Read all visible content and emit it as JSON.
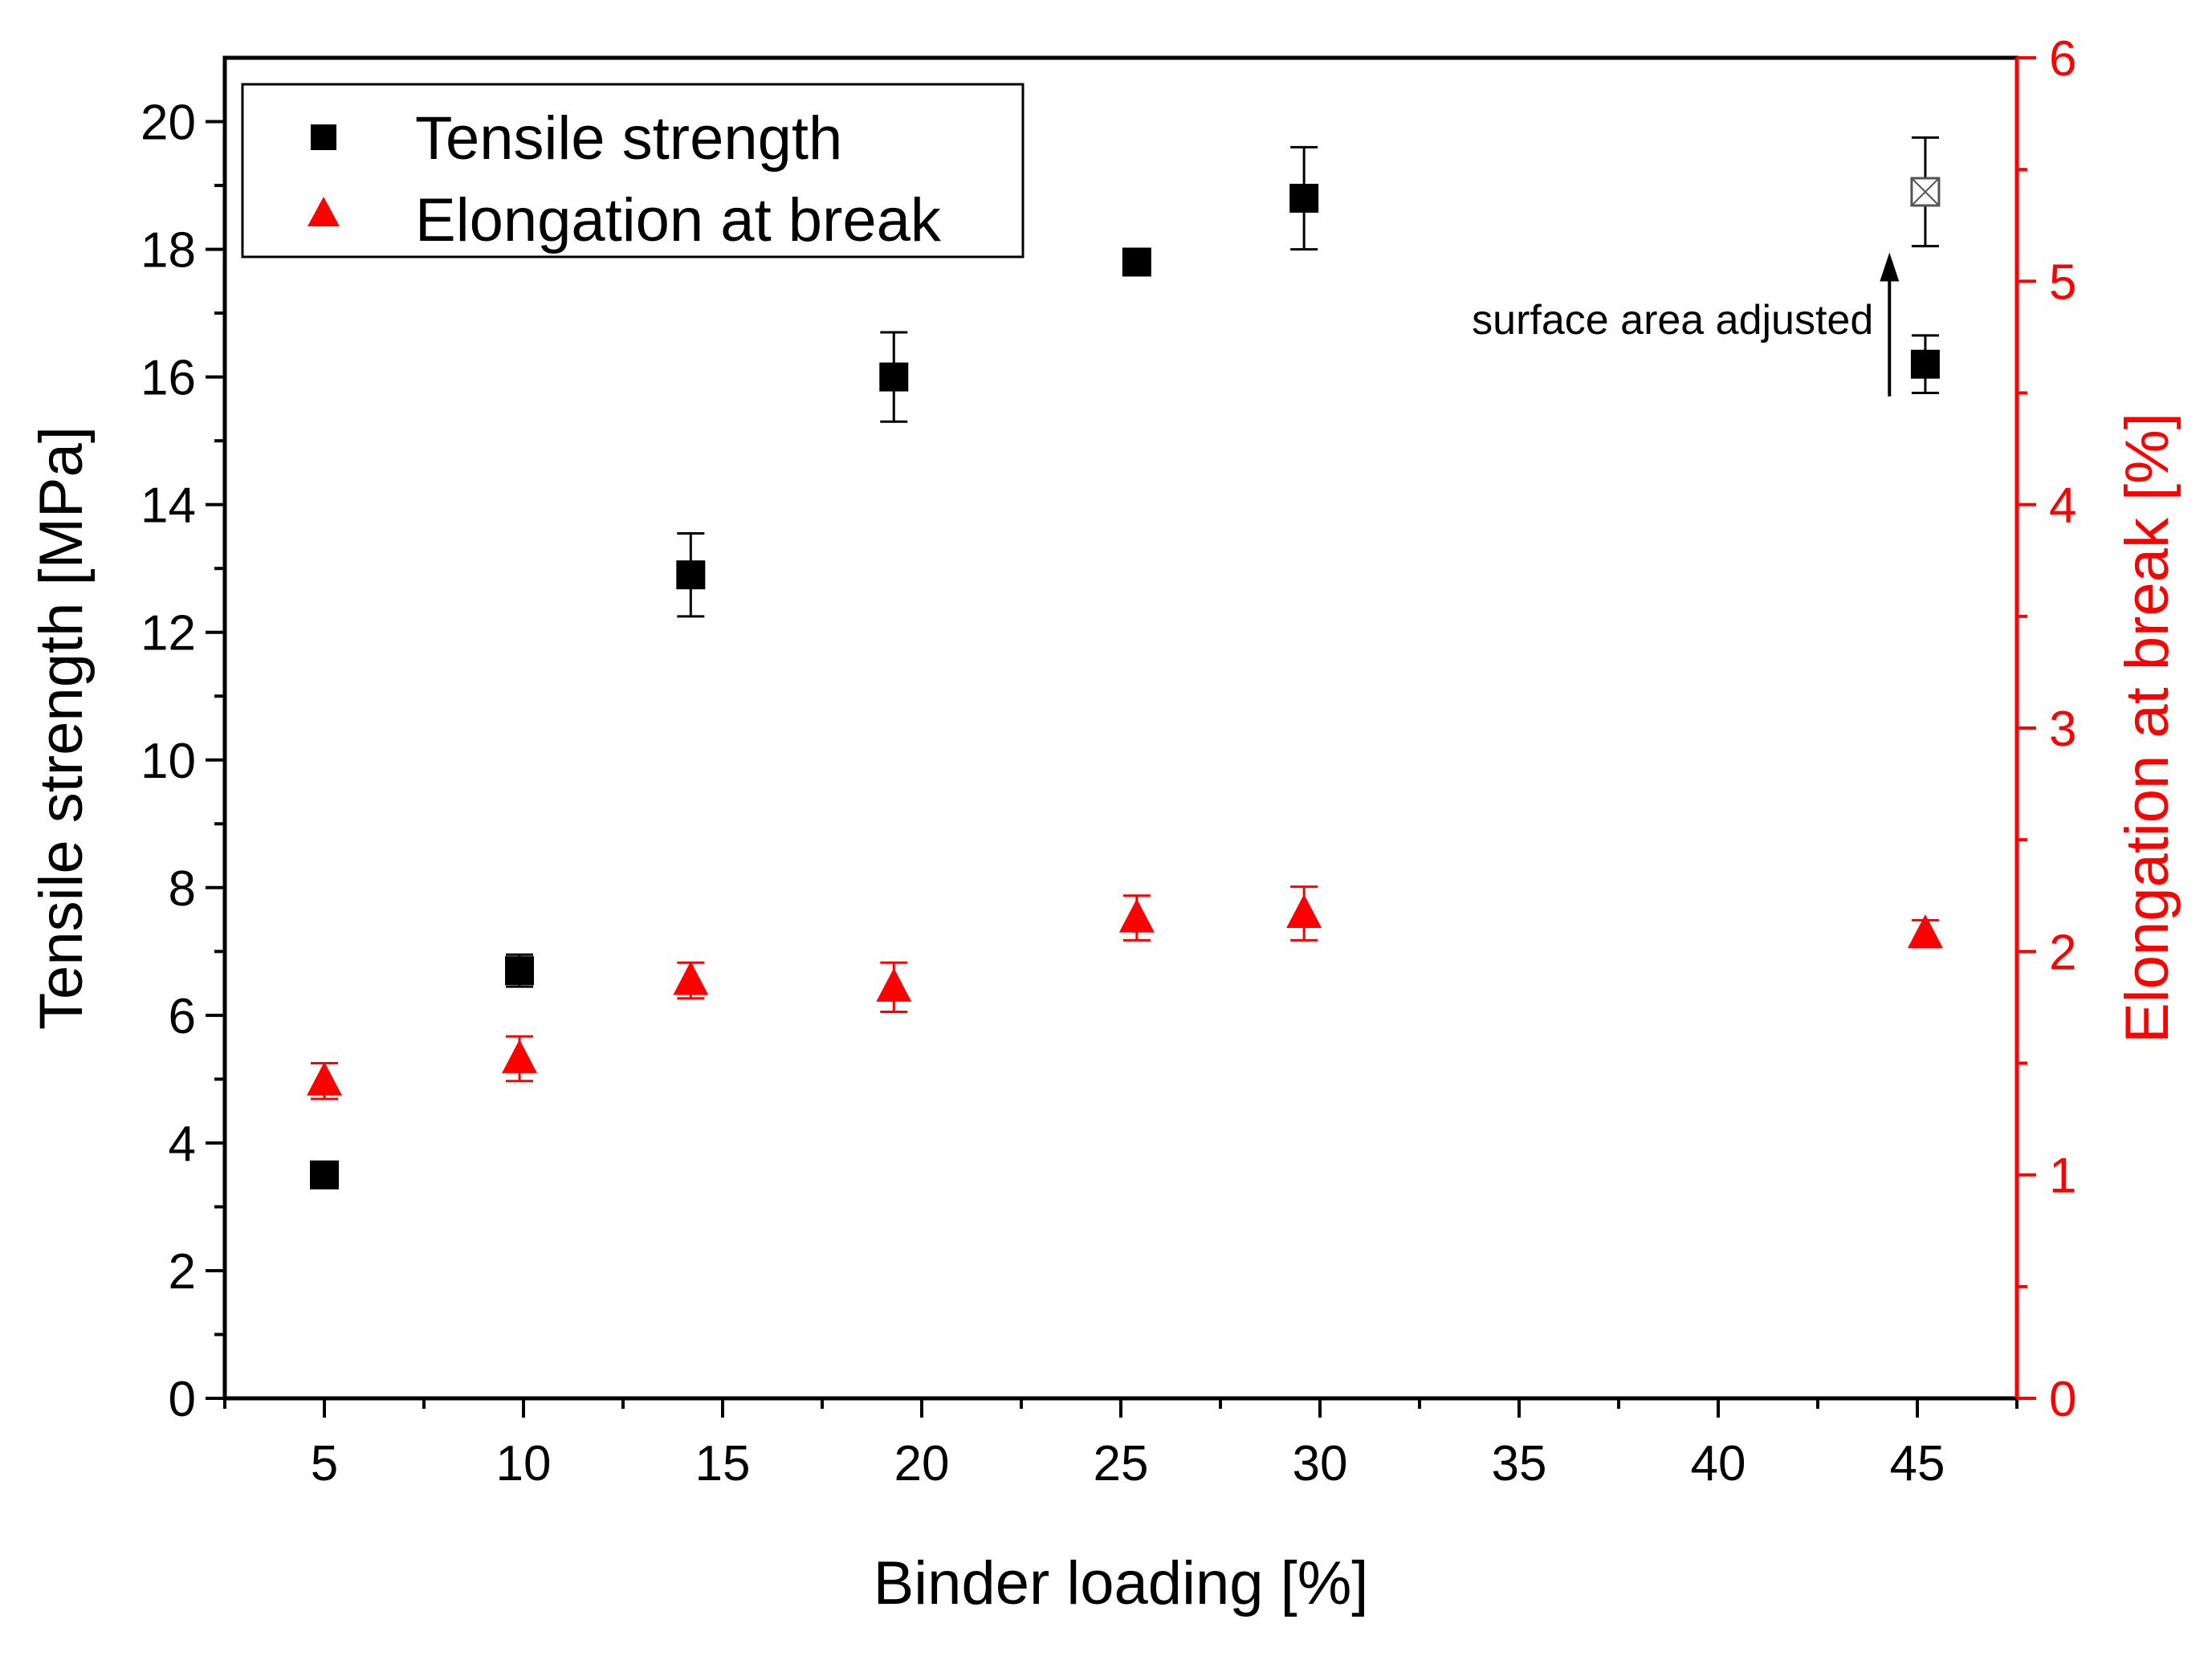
{
  "chart_data": {
    "type": "scatter",
    "xlabel": "Binder loading [%]",
    "ylabel": "Tensile strength [MPa]",
    "y2label": "Elongation at break [%]",
    "xlim": [
      2.5,
      47.5
    ],
    "ylim": [
      0,
      21
    ],
    "y2lim": [
      0,
      6
    ],
    "xticks": [
      5,
      10,
      15,
      20,
      25,
      30,
      35,
      40,
      45
    ],
    "yticks": [
      0,
      2,
      4,
      6,
      8,
      10,
      12,
      14,
      16,
      18,
      20
    ],
    "y2ticks": [
      0,
      1,
      2,
      3,
      4,
      5,
      6
    ],
    "legend_position": "top-left",
    "colors": {
      "primary": "#000000",
      "secondary": "#ff0000",
      "adjusted": "#555555"
    },
    "series": [
      {
        "name": "Tensile strength",
        "axis": "left",
        "marker": "square",
        "color": "#000000",
        "x": [
          5.0,
          9.9,
          14.2,
          19.3,
          25.4,
          29.6,
          45.2
        ],
        "y": [
          3.5,
          6.7,
          12.9,
          16.0,
          17.8,
          18.8,
          16.2
        ],
        "err": [
          0.1,
          0.25,
          0.65,
          0.7,
          0.15,
          0.8,
          0.45
        ]
      },
      {
        "name": "Elongation at break",
        "axis": "right",
        "marker": "triangle",
        "color": "#ff0000",
        "x": [
          5.0,
          9.9,
          14.2,
          19.3,
          25.4,
          29.6,
          45.2
        ],
        "y": [
          1.42,
          1.52,
          1.87,
          1.84,
          2.15,
          2.17,
          2.08
        ],
        "err": [
          0.08,
          0.1,
          0.08,
          0.11,
          0.1,
          0.12,
          0.06
        ]
      }
    ],
    "adjusted_point": {
      "label": "surface area adjusted",
      "x": 45.2,
      "y": 18.9,
      "err": 0.85,
      "from_y": 16.2
    }
  }
}
